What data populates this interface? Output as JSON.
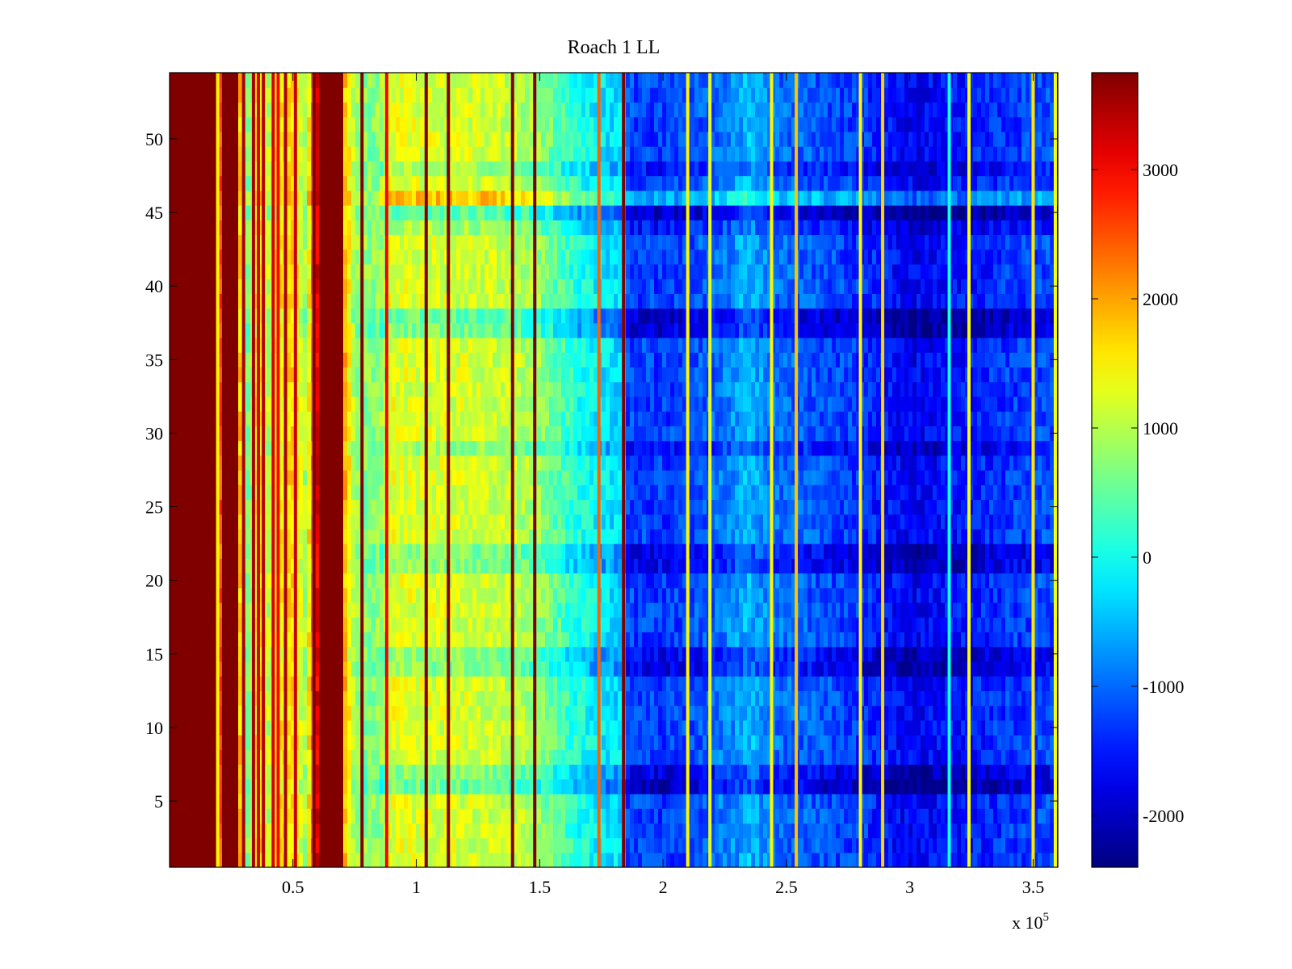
{
  "chart_data": {
    "type": "heatmap",
    "title": "Roach 1 LL",
    "xlabel": "",
    "ylabel": "",
    "x_multiplier": "x 10",
    "x_exponent": "5",
    "xlim": [
      0,
      3.6
    ],
    "ylim": [
      0.5,
      54.5
    ],
    "x_ticks": [
      0.5,
      1,
      1.5,
      2,
      2.5,
      3,
      3.5
    ],
    "x_tick_labels": [
      "0.5",
      "1",
      "1.5",
      "2",
      "2.5",
      "3",
      "3.5"
    ],
    "y_ticks": [
      5,
      10,
      15,
      20,
      25,
      30,
      35,
      40,
      45,
      50
    ],
    "y_tick_labels": [
      "5",
      "10",
      "15",
      "20",
      "25",
      "30",
      "35",
      "40",
      "45",
      "50"
    ],
    "rows": 54,
    "colorbar": {
      "colormap": "jet",
      "clim": [
        -2400,
        3750
      ],
      "ticks": [
        -2000,
        -1000,
        0,
        1000,
        2000,
        3000
      ],
      "tick_labels": [
        "-2000",
        "-1000",
        "0",
        "1000",
        "2000",
        "3000"
      ]
    },
    "column_profile": [
      [
        0.0,
        3750
      ],
      [
        0.19,
        3750
      ],
      [
        0.2,
        1600
      ],
      [
        0.21,
        3750
      ],
      [
        0.28,
        3750
      ],
      [
        0.29,
        600
      ],
      [
        0.33,
        700
      ],
      [
        0.36,
        1800
      ],
      [
        0.4,
        1000
      ],
      [
        0.45,
        1500
      ],
      [
        0.5,
        1700
      ],
      [
        0.55,
        900
      ],
      [
        0.58,
        2300
      ],
      [
        0.61,
        3750
      ],
      [
        0.7,
        3750
      ],
      [
        0.71,
        1900
      ],
      [
        0.75,
        900
      ],
      [
        0.8,
        700
      ],
      [
        0.85,
        800
      ],
      [
        0.9,
        1300
      ],
      [
        1.0,
        1250
      ],
      [
        1.2,
        1200
      ],
      [
        1.4,
        1050
      ],
      [
        1.5,
        800
      ],
      [
        1.58,
        400
      ],
      [
        1.65,
        100
      ],
      [
        1.75,
        -200
      ],
      [
        1.84,
        -300
      ],
      [
        1.85,
        -1200
      ],
      [
        2.0,
        -1300
      ],
      [
        2.2,
        -1050
      ],
      [
        2.35,
        -500
      ],
      [
        2.45,
        -950
      ],
      [
        2.6,
        -1100
      ],
      [
        2.8,
        -1300
      ],
      [
        3.0,
        -1700
      ],
      [
        3.2,
        -1550
      ],
      [
        3.4,
        -1300
      ],
      [
        3.6,
        -1150
      ]
    ],
    "vertical_stripes": [
      [
        0.195,
        1500
      ],
      [
        0.3,
        3500
      ],
      [
        0.34,
        3500
      ],
      [
        0.36,
        3200
      ],
      [
        0.38,
        3400
      ],
      [
        0.42,
        3200
      ],
      [
        0.44,
        3000
      ],
      [
        0.47,
        3500
      ],
      [
        0.51,
        3300
      ],
      [
        0.585,
        3750
      ],
      [
        0.78,
        3750
      ],
      [
        0.88,
        3000
      ],
      [
        1.04,
        3750
      ],
      [
        1.13,
        3750
      ],
      [
        1.39,
        3750
      ],
      [
        1.48,
        3750
      ],
      [
        1.74,
        2400
      ],
      [
        1.84,
        3750
      ],
      [
        2.1,
        1500
      ],
      [
        2.19,
        1300
      ],
      [
        2.44,
        1500
      ],
      [
        2.54,
        1800
      ],
      [
        2.8,
        1500
      ],
      [
        2.89,
        1700
      ],
      [
        3.16,
        0
      ],
      [
        3.24,
        1400
      ],
      [
        3.5,
        1600
      ],
      [
        3.59,
        1400
      ]
    ],
    "row_offsets": [
      [
        6,
        -700
      ],
      [
        7,
        -500
      ],
      [
        14,
        -500
      ],
      [
        15,
        -450
      ],
      [
        21,
        -450
      ],
      [
        22,
        -500
      ],
      [
        29,
        -350
      ],
      [
        37,
        -600
      ],
      [
        38,
        -700
      ],
      [
        44,
        -300
      ],
      [
        45,
        -750
      ],
      [
        46,
        600
      ],
      [
        48,
        -300
      ]
    ]
  }
}
